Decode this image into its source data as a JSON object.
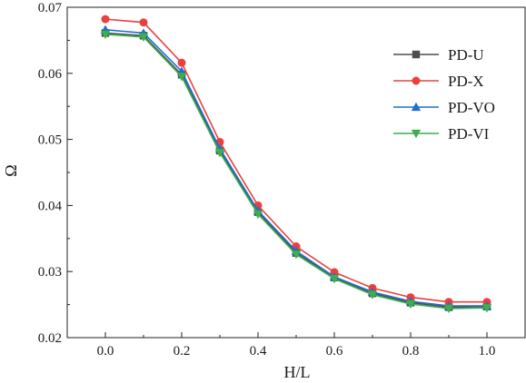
{
  "chart_data": {
    "type": "line",
    "xlabel": "H/L",
    "ylabel": "Ω",
    "xlim": [
      -0.1,
      1.1
    ],
    "ylim": [
      0.02,
      0.07
    ],
    "x_ticks": [
      0.0,
      0.2,
      0.4,
      0.6,
      0.8,
      1.0
    ],
    "x_tick_labels": [
      "0.0",
      "0.2",
      "0.4",
      "0.6",
      "0.8",
      "1.0"
    ],
    "y_ticks": [
      0.02,
      0.03,
      0.04,
      0.05,
      0.06,
      0.07
    ],
    "y_tick_labels": [
      "0.02",
      "0.03",
      "0.04",
      "0.05",
      "0.06",
      "0.07"
    ],
    "grid": false,
    "legend_position": "top-right",
    "x": [
      0.0,
      0.1,
      0.2,
      0.3,
      0.4,
      0.5,
      0.6,
      0.7,
      0.8,
      0.9,
      1.0
    ],
    "series": [
      {
        "name": "PD-U",
        "color": "#4d4d4d",
        "marker": "square",
        "values": [
          0.0661,
          0.0657,
          0.0598,
          0.0483,
          0.039,
          0.0328,
          0.0291,
          0.0267,
          0.0253,
          0.0246,
          0.0247
        ]
      },
      {
        "name": "PD-X",
        "color": "#e8413f",
        "marker": "circle",
        "values": [
          0.0682,
          0.0677,
          0.0616,
          0.0496,
          0.04,
          0.0338,
          0.0299,
          0.0275,
          0.0261,
          0.0254,
          0.0254
        ]
      },
      {
        "name": "PD-VO",
        "color": "#1f6fd1",
        "marker": "triangle-up",
        "values": [
          0.0666,
          0.0661,
          0.0603,
          0.0486,
          0.0392,
          0.0331,
          0.0292,
          0.0269,
          0.0255,
          0.0248,
          0.0248
        ]
      },
      {
        "name": "PD-VI",
        "color": "#3cae4e",
        "marker": "triangle-down",
        "values": [
          0.0659,
          0.0655,
          0.0595,
          0.048,
          0.0387,
          0.0326,
          0.0289,
          0.0265,
          0.0251,
          0.0244,
          0.0245
        ]
      }
    ]
  }
}
